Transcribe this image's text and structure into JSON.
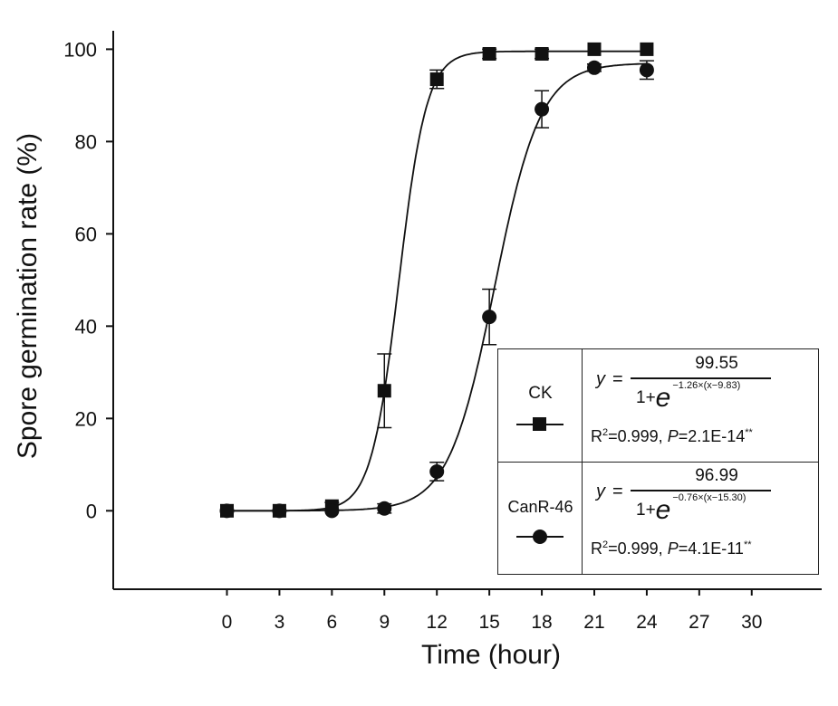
{
  "chart_data": {
    "type": "scatter",
    "xlabel": "Time (hour)",
    "ylabel": "Spore germination rate (%)",
    "xlim": [
      -6.5,
      34
    ],
    "ylim": [
      -17,
      104
    ],
    "xticks": [
      0,
      3,
      6,
      9,
      12,
      15,
      18,
      21,
      24,
      27,
      30
    ],
    "yticks": [
      0,
      20,
      40,
      60,
      80,
      100
    ],
    "grid": false,
    "legend_position": "bottom-right",
    "series": [
      {
        "name": "CK",
        "marker": "square",
        "color": "#111111",
        "x": [
          0,
          3,
          6,
          9,
          12,
          15,
          18,
          21,
          24
        ],
        "y": [
          0,
          0,
          1,
          26,
          93.5,
          99,
          99,
          100,
          100
        ],
        "err": [
          0,
          0,
          0.8,
          8,
          2,
          1,
          1,
          0,
          0
        ],
        "fit": {
          "a": 99.55,
          "b": 1.26,
          "c": 9.83
        },
        "equation": {
          "lhs": "y",
          "numerator": "99.55",
          "den_prefix": "1+",
          "den_base": "e",
          "exponent": "−1.26×(x−9.83)",
          "r2_label": "R",
          "r2_sup": "2",
          "r2_value": "=0.999, ",
          "p_label": "P",
          "p_value": "=2.1E-14",
          "p_sig": "**"
        }
      },
      {
        "name": "CanR-46",
        "marker": "circle",
        "color": "#111111",
        "x": [
          0,
          3,
          6,
          9,
          12,
          15,
          18,
          21,
          24
        ],
        "y": [
          0,
          0,
          0,
          0.5,
          8.5,
          42,
          87,
          96,
          95.5
        ],
        "err": [
          0,
          0,
          0,
          1,
          2,
          6,
          4,
          0.8,
          2
        ],
        "fit": {
          "a": 96.99,
          "b": 0.76,
          "c": 15.3
        },
        "equation": {
          "lhs": "y",
          "numerator": "96.99",
          "den_prefix": "1+",
          "den_base": "e",
          "exponent": "−0.76×(x−15.30)",
          "r2_label": "R",
          "r2_sup": "2",
          "r2_value": "=0.999, ",
          "p_label": "P",
          "p_value": "=4.1E-11",
          "p_sig": "**"
        }
      }
    ]
  }
}
